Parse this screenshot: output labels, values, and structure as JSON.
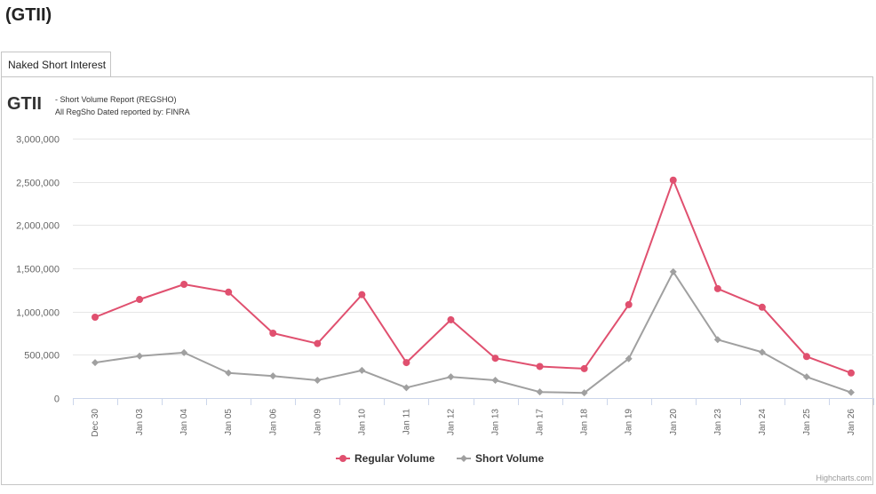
{
  "page": {
    "title": "(GTII)"
  },
  "tabs": [
    {
      "label": "Naked Short Interest"
    }
  ],
  "chart_header": {
    "symbol": "GTII",
    "subtitle_line1": "- Short Volume Report  (REGSHO)",
    "subtitle_line2": "All RegSho Dated reported by: FINRA"
  },
  "credits": "Highcharts.com",
  "colors": {
    "regular": "#e0506f",
    "short": "#a0a0a0",
    "grid": "#e6e6e6",
    "axis_line": "#ccd6eb",
    "text": "#666666"
  },
  "chart_data": {
    "type": "line",
    "x": [
      "Dec 30",
      "Jan 03",
      "Jan 04",
      "Jan 05",
      "Jan 06",
      "Jan 09",
      "Jan 10",
      "Jan 11",
      "Jan 12",
      "Jan 13",
      "Jan 17",
      "Jan 18",
      "Jan 19",
      "Jan 20",
      "Jan 23",
      "Jan 24",
      "Jan 25",
      "Jan 26"
    ],
    "series": [
      {
        "name": "Regular Volume",
        "marker": "circle",
        "values": [
          935000,
          1140000,
          1315000,
          1225000,
          750000,
          630000,
          1195000,
          410000,
          905000,
          460000,
          365000,
          340000,
          1080000,
          2520000,
          1265000,
          1050000,
          480000,
          290000
        ]
      },
      {
        "name": "Short Volume",
        "marker": "diamond",
        "values": [
          410000,
          485000,
          525000,
          290000,
          255000,
          205000,
          320000,
          120000,
          245000,
          205000,
          70000,
          60000,
          455000,
          1460000,
          675000,
          530000,
          245000,
          65000
        ]
      }
    ],
    "ylim": [
      0,
      3000000
    ],
    "yticks": [
      0,
      500000,
      1000000,
      1500000,
      2000000,
      2500000,
      3000000
    ],
    "ytick_labels": [
      "0",
      "500,000",
      "1,000,000",
      "1,500,000",
      "2,000,000",
      "2,500,000",
      "3,000,000"
    ],
    "grid": true,
    "legend": "bottom-center"
  }
}
